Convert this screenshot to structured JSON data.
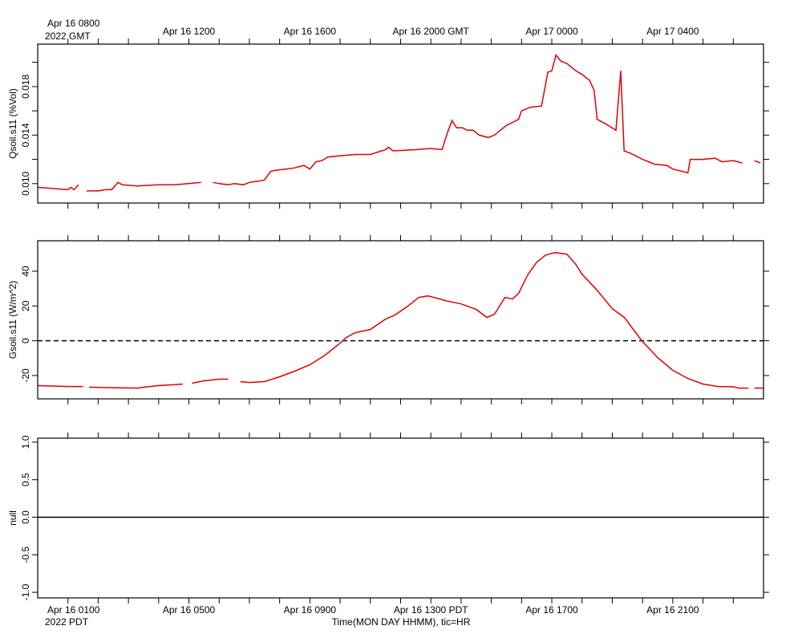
{
  "time_axis": {
    "xlim": [
      7,
      31
    ],
    "hour_ticks": [
      8,
      9,
      10,
      11,
      12,
      13,
      14,
      15,
      16,
      17,
      18,
      19,
      20,
      21,
      22,
      23,
      24,
      25,
      26,
      27,
      28,
      29,
      30
    ],
    "xticks_gmt": [
      {
        "value": 8,
        "label": "Apr 16 0800"
      },
      {
        "value": 12,
        "label": "Apr 16 1200"
      },
      {
        "value": 16,
        "label": "Apr 16 1600"
      },
      {
        "value": 20,
        "label": "Apr 16 2000 GMT"
      },
      {
        "value": 24,
        "label": "Apr 17 0000"
      },
      {
        "value": 28,
        "label": "Apr 17 0400"
      }
    ],
    "xticks_pdt": [
      {
        "value": 8,
        "label": "Apr 16 0100"
      },
      {
        "value": 12,
        "label": "Apr 16 0500"
      },
      {
        "value": 16,
        "label": "Apr 16 0900"
      },
      {
        "value": 20,
        "label": "Apr 16 1300 PDT"
      },
      {
        "value": 24,
        "label": "Apr 16 1700"
      },
      {
        "value": 28,
        "label": "Apr 16 2100"
      }
    ],
    "gmt_year": "2022 GMT",
    "pdt_year": "2022 PDT",
    "xlabel": "Time(MON DAY HHMM), tic=HR"
  },
  "chart_data": [
    {
      "type": "line",
      "ylabel": "Qsoil.s11 (%Vol)",
      "ylim": [
        0.0084,
        0.0215
      ],
      "yticks": [
        {
          "value": 0.01,
          "label": "0.010"
        },
        0.014,
        0.018
      ],
      "yminorticks": [
        0.012,
        0.016,
        0.02
      ],
      "x": [
        7.0,
        7.5,
        8.0,
        8.1,
        8.2,
        8.35,
        8.5,
        8.62,
        9.0,
        9.23,
        9.45,
        9.65,
        9.8,
        10.3,
        11.0,
        11.5,
        12.0,
        12.4,
        12.6,
        12.8,
        13.0,
        13.3,
        13.5,
        13.8,
        14.0,
        14.3,
        14.5,
        14.7,
        14.85,
        15.2,
        15.5,
        15.8,
        16.0,
        16.2,
        16.4,
        16.6,
        17.0,
        17.5,
        18.0,
        18.5,
        18.6,
        18.75,
        19.5,
        20.0,
        20.37,
        20.55,
        20.7,
        20.85,
        21.05,
        21.2,
        21.4,
        21.6,
        21.9,
        22.1,
        22.5,
        22.9,
        23.0,
        23.3,
        23.66,
        23.87,
        24.0,
        24.14,
        24.3,
        24.5,
        24.8,
        25.0,
        25.25,
        25.4,
        25.5,
        25.8,
        26.12,
        26.28,
        26.39,
        26.6,
        27.0,
        27.4,
        27.8,
        28.0,
        28.5,
        28.58,
        29.0,
        29.4,
        29.63,
        30.0,
        30.3,
        30.5,
        30.7,
        30.9
      ],
      "series": [
        {
          "color": "#e00000",
          "values": [
            0.0097,
            0.0096,
            0.0095,
            0.0097,
            0.0095,
            0.0099,
            null,
            0.0094,
            0.0094,
            0.0095,
            0.0095,
            0.0101,
            0.0099,
            0.0098,
            0.0099,
            0.0099,
            0.01,
            0.0101,
            null,
            0.0101,
            0.01,
            0.0099,
            0.01,
            0.0099,
            0.0101,
            0.0102,
            0.0103,
            0.011,
            0.0111,
            0.0112,
            0.0113,
            0.0115,
            0.0112,
            0.0118,
            0.0119,
            0.0122,
            0.0123,
            0.0124,
            0.0124,
            0.0128,
            0.013,
            0.0127,
            0.0128,
            0.0129,
            0.0128,
            0.0142,
            0.0152,
            0.0146,
            0.0146,
            0.0144,
            0.0144,
            0.014,
            0.0138,
            0.014,
            0.0148,
            0.0153,
            0.016,
            0.0163,
            0.0164,
            0.0192,
            0.0193,
            0.0206,
            0.0201,
            0.0199,
            0.0193,
            0.019,
            0.0185,
            0.0177,
            0.0153,
            0.0149,
            0.0144,
            0.0193,
            0.0127,
            0.0125,
            0.012,
            0.0116,
            0.0115,
            0.0112,
            0.0109,
            0.012,
            0.012,
            0.0121,
            0.0118,
            0.0119,
            0.0117,
            null,
            0.0119,
            0.0117
          ]
        }
      ]
    },
    {
      "type": "line",
      "ylabel": "Gsoil.s11 (W/m^2)",
      "ylim": [
        -33.4,
        57.5
      ],
      "yticks": [
        -20,
        0,
        20,
        40
      ],
      "reference_line": {
        "value": 0,
        "dashed": true
      },
      "x": [
        7.0,
        8.0,
        8.5,
        8.55,
        8.7,
        9.5,
        10.3,
        10.5,
        11.0,
        11.5,
        11.8,
        12.0,
        12.1,
        12.5,
        13.0,
        13.3,
        13.4,
        13.7,
        14.0,
        14.5,
        15.0,
        15.5,
        16.0,
        16.5,
        17.0,
        17.2,
        17.5,
        18.0,
        18.5,
        18.8,
        19.2,
        19.6,
        19.9,
        20.3,
        20.5,
        21.0,
        21.5,
        21.85,
        22.1,
        22.45,
        22.7,
        22.9,
        23.2,
        23.5,
        23.8,
        24.1,
        24.5,
        24.8,
        25.0,
        25.5,
        26.0,
        26.4,
        26.8,
        27.0,
        27.5,
        28.0,
        28.5,
        29.0,
        29.5,
        30.0,
        30.2,
        30.5,
        30.6,
        30.7,
        31.0
      ],
      "series": [
        {
          "color": "#e00000",
          "values": [
            -25.8,
            -26.3,
            -26.3,
            null,
            -26.7,
            -27,
            -27.2,
            -26.7,
            -25.8,
            -25.3,
            -24.9,
            null,
            -24.4,
            -23,
            -22.1,
            -22.1,
            null,
            -23.5,
            -24,
            -23.5,
            -20.7,
            -17.5,
            -13.8,
            -8.3,
            -1.4,
            1.8,
            4.6,
            6.5,
            12.4,
            14.7,
            19.4,
            24.9,
            25.8,
            24,
            23,
            21.2,
            18,
            13.4,
            15.2,
            24.9,
            24,
            27.2,
            37.8,
            45.2,
            49.3,
            50.7,
            49.8,
            43.8,
            38.2,
            29,
            18.4,
            13.4,
            4.1,
            -0.5,
            -9.7,
            -17,
            -21.7,
            -24.9,
            -26.3,
            -26.5,
            -27.2,
            -27.2,
            null,
            -27.2,
            -27.2
          ]
        }
      ]
    },
    {
      "type": "line",
      "ylabel": "null",
      "ylim": [
        -1.074,
        1.053
      ],
      "yticks": [
        {
          "value": -1,
          "label": "-1.0"
        },
        -0.5,
        {
          "value": 0,
          "label": "0.0"
        },
        0.5,
        {
          "value": 1,
          "label": "1.0"
        }
      ],
      "reference_line": {
        "value": 0,
        "dashed": false
      }
    }
  ]
}
